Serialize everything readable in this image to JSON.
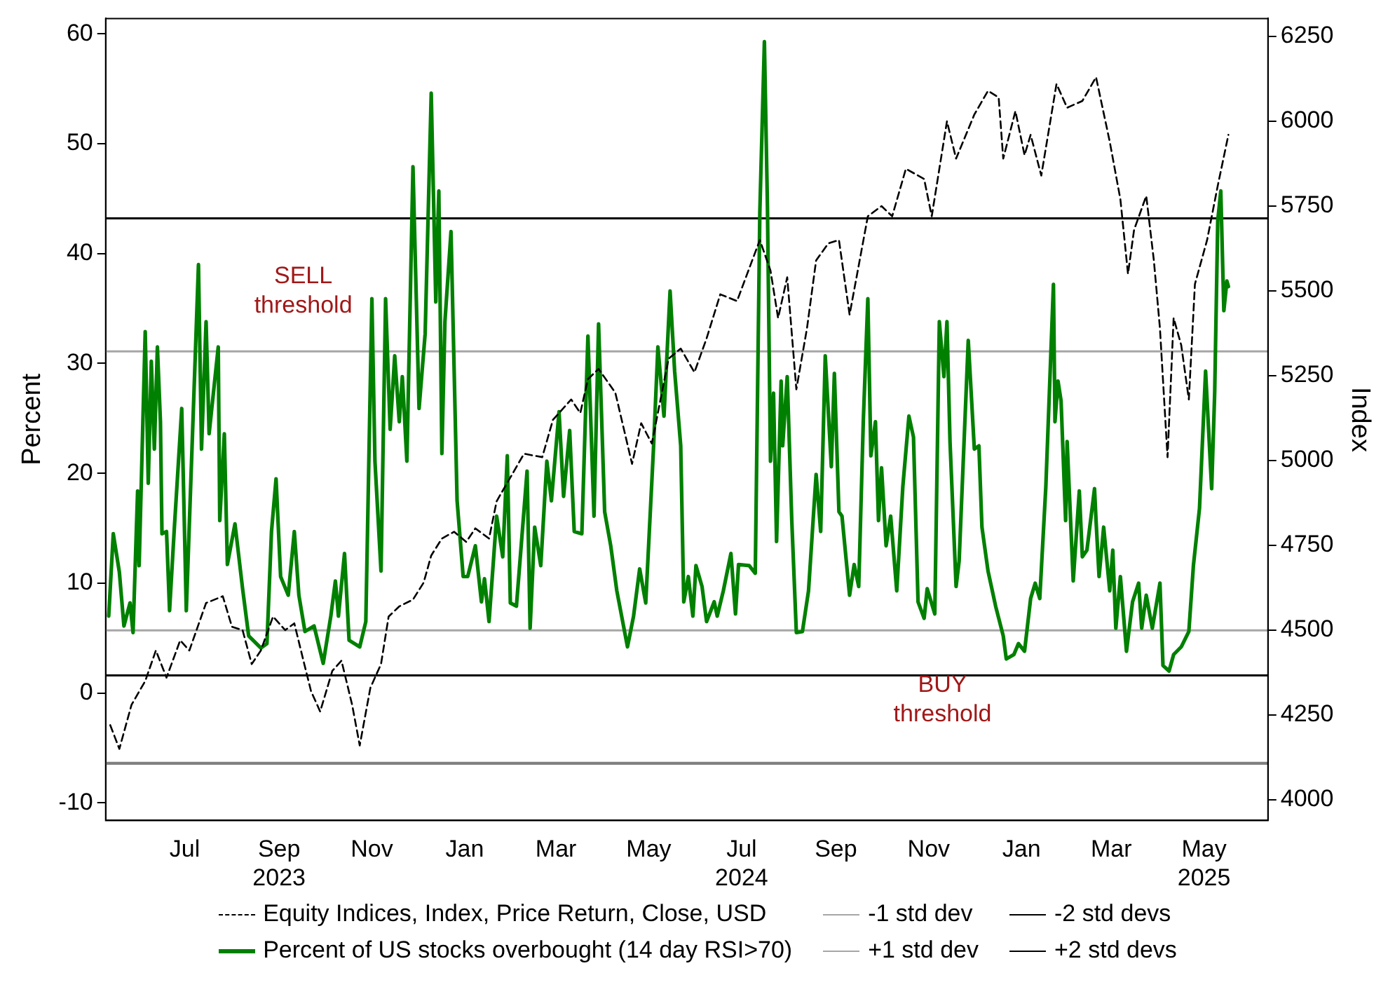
{
  "chart_data": {
    "type": "line",
    "xlim": [
      "2023-05-24",
      "2025-06-26"
    ],
    "xticks": [
      {
        "value": "2023-07-15",
        "label": "Jul"
      },
      {
        "value": "2023-09-15",
        "label": "Sep\n2023"
      },
      {
        "value": "2023-11-15",
        "label": "Nov"
      },
      {
        "value": "2024-01-15",
        "label": "Jan"
      },
      {
        "value": "2024-03-15",
        "label": "Mar"
      },
      {
        "value": "2024-05-15",
        "label": "May"
      },
      {
        "value": "2024-07-15",
        "label": "Jul\n2024"
      },
      {
        "value": "2024-09-15",
        "label": "Sep"
      },
      {
        "value": "2024-11-15",
        "label": "Nov"
      },
      {
        "value": "2025-01-15",
        "label": "Jan"
      },
      {
        "value": "2025-03-15",
        "label": "Mar"
      },
      {
        "value": "2025-05-15",
        "label": "May\n2025"
      }
    ],
    "ylim": [
      -11.6,
      61.4
    ],
    "yticks": [
      -10,
      0,
      10,
      20,
      30,
      40,
      50,
      60
    ],
    "ylabel": "Percent",
    "y2lim": [
      3939,
      6303
    ],
    "y2ticks": [
      4000,
      4250,
      4500,
      4750,
      5000,
      5250,
      5500,
      5750,
      6000,
      6250
    ],
    "y2label": "Index",
    "grid": false,
    "legend": "bottom",
    "marker": "none",
    "series": [
      {
        "name": "Equity Indices, Index, Price Return, Close, USD",
        "color": "#000000",
        "axis": "y2",
        "line_style": "dashed",
        "x": [
          "2023-05-27",
          "2023-06-02",
          "2023-06-10",
          "2023-06-19",
          "2023-06-26",
          "2023-07-03",
          "2023-07-12",
          "2023-07-18",
          "2023-07-29",
          "2023-08-09",
          "2023-08-15",
          "2023-08-22",
          "2023-08-28",
          "2023-09-03",
          "2023-09-11",
          "2023-09-19",
          "2023-09-25",
          "2023-10-01",
          "2023-10-06",
          "2023-10-12",
          "2023-10-20",
          "2023-10-26",
          "2023-11-02",
          "2023-11-07",
          "2023-11-14",
          "2023-11-21",
          "2023-11-26",
          "2023-12-03",
          "2023-12-12",
          "2023-12-19",
          "2023-12-24",
          "2023-12-31",
          "2024-01-08",
          "2024-01-16",
          "2024-01-22",
          "2024-01-31",
          "2024-02-05",
          "2024-02-14",
          "2024-02-23",
          "2024-03-06",
          "2024-03-13",
          "2024-03-25",
          "2024-03-31",
          "2024-04-05",
          "2024-04-12",
          "2024-04-23",
          "2024-05-04",
          "2024-05-10",
          "2024-05-17",
          "2024-05-28",
          "2024-06-05",
          "2024-06-14",
          "2024-06-22",
          "2024-07-01",
          "2024-07-12",
          "2024-07-27",
          "2024-08-03",
          "2024-08-08",
          "2024-08-14",
          "2024-08-20",
          "2024-08-27",
          "2024-09-02",
          "2024-09-10",
          "2024-09-17",
          "2024-09-24",
          "2024-10-06",
          "2024-10-15",
          "2024-10-22",
          "2024-10-31",
          "2024-11-12",
          "2024-11-17",
          "2024-11-27",
          "2024-12-03",
          "2024-12-15",
          "2024-12-24",
          "2024-12-31",
          "2025-01-03",
          "2025-01-11",
          "2025-01-17",
          "2025-01-21",
          "2025-01-28",
          "2025-02-07",
          "2025-02-14",
          "2025-02-24",
          "2025-03-05",
          "2025-03-14",
          "2025-03-21",
          "2025-03-26",
          "2025-03-30",
          "2025-04-07",
          "2025-04-12",
          "2025-04-16",
          "2025-04-21",
          "2025-04-25",
          "2025-04-30",
          "2025-05-05",
          "2025-05-09",
          "2025-05-17",
          "2025-05-24",
          "2025-05-31"
        ],
        "values": [
          4220,
          4150,
          4280,
          4350,
          4440,
          4360,
          4470,
          4440,
          4580,
          4600,
          4510,
          4500,
          4400,
          4440,
          4540,
          4500,
          4520,
          4410,
          4320,
          4260,
          4380,
          4410,
          4280,
          4160,
          4330,
          4400,
          4540,
          4570,
          4590,
          4640,
          4720,
          4770,
          4790,
          4760,
          4800,
          4770,
          4880,
          4950,
          5020,
          5010,
          5120,
          5180,
          5140,
          5240,
          5270,
          5200,
          4990,
          5110,
          5050,
          5300,
          5330,
          5260,
          5360,
          5490,
          5470,
          5650,
          5560,
          5420,
          5540,
          5210,
          5390,
          5590,
          5640,
          5650,
          5430,
          5720,
          5750,
          5720,
          5860,
          5830,
          5720,
          6000,
          5890,
          6020,
          6090,
          6070,
          5890,
          6030,
          5900,
          5960,
          5840,
          6110,
          6040,
          6060,
          6130,
          5940,
          5770,
          5550,
          5680,
          5780,
          5590,
          5390,
          5010,
          5420,
          5340,
          5180,
          5520,
          5650,
          5810,
          5960
        ]
      },
      {
        "name": "Percent of US stocks overbought (14 day RSI>70)",
        "color": "#008000",
        "line_style": "solid",
        "x": [
          "2023-05-26",
          "2023-05-29",
          "2023-06-02",
          "2023-06-05",
          "2023-06-09",
          "2023-06-11",
          "2023-06-14",
          "2023-06-15",
          "2023-06-19",
          "2023-06-21",
          "2023-06-23",
          "2023-06-25",
          "2023-06-27",
          "2023-06-29",
          "2023-06-30",
          "2023-07-03",
          "2023-07-05",
          "2023-07-08",
          "2023-07-13",
          "2023-07-16",
          "2023-07-24",
          "2023-07-26",
          "2023-07-29",
          "2023-07-31",
          "2023-08-06",
          "2023-08-07",
          "2023-08-10",
          "2023-08-12",
          "2023-08-17",
          "2023-08-22",
          "2023-08-26",
          "2023-09-03",
          "2023-09-07",
          "2023-09-10",
          "2023-09-13",
          "2023-09-16",
          "2023-09-21",
          "2023-09-25",
          "2023-09-28",
          "2023-10-02",
          "2023-10-08",
          "2023-10-14",
          "2023-10-19",
          "2023-10-22",
          "2023-10-24",
          "2023-10-28",
          "2023-10-31",
          "2023-11-07",
          "2023-11-11",
          "2023-11-15",
          "2023-11-17",
          "2023-11-21",
          "2023-11-24",
          "2023-11-27",
          "2023-11-30",
          "2023-12-03",
          "2023-12-05",
          "2023-12-08",
          "2023-12-12",
          "2023-12-16",
          "2023-12-20",
          "2023-12-24",
          "2023-12-27",
          "2023-12-29",
          "2023-12-31",
          "2024-01-02",
          "2024-01-06",
          "2024-01-10",
          "2024-01-14",
          "2024-01-17",
          "2024-01-22",
          "2024-01-26",
          "2024-01-28",
          "2024-01-31",
          "2024-02-05",
          "2024-02-09",
          "2024-02-12",
          "2024-02-14",
          "2024-02-18",
          "2024-02-25",
          "2024-02-27",
          "2024-03-01",
          "2024-03-05",
          "2024-03-09",
          "2024-03-12",
          "2024-03-17",
          "2024-03-20",
          "2024-03-24",
          "2024-03-27",
          "2024-04-01",
          "2024-04-05",
          "2024-04-09",
          "2024-04-12",
          "2024-04-16",
          "2024-04-20",
          "2024-04-24",
          "2024-05-01",
          "2024-05-05",
          "2024-05-09",
          "2024-05-13",
          "2024-05-18",
          "2024-05-21",
          "2024-05-25",
          "2024-05-29",
          "2024-06-01",
          "2024-06-05",
          "2024-06-07",
          "2024-06-10",
          "2024-06-13",
          "2024-06-15",
          "2024-06-19",
          "2024-06-22",
          "2024-06-27",
          "2024-06-29",
          "2024-07-03",
          "2024-07-08",
          "2024-07-11",
          "2024-07-13",
          "2024-07-20",
          "2024-07-24",
          "2024-07-27",
          "2024-07-30",
          "2024-08-01",
          "2024-08-03",
          "2024-08-05",
          "2024-08-07",
          "2024-08-10",
          "2024-08-11",
          "2024-08-14",
          "2024-08-17",
          "2024-08-20",
          "2024-08-24",
          "2024-08-28",
          "2024-09-02",
          "2024-09-05",
          "2024-09-08",
          "2024-09-12",
          "2024-09-14",
          "2024-09-17",
          "2024-09-19",
          "2024-09-24",
          "2024-09-27",
          "2024-09-30",
          "2024-10-03",
          "2024-10-06",
          "2024-10-08",
          "2024-10-11",
          "2024-10-13",
          "2024-10-15",
          "2024-10-18",
          "2024-10-21",
          "2024-10-25",
          "2024-10-29",
          "2024-11-02",
          "2024-11-05",
          "2024-11-08",
          "2024-11-12",
          "2024-11-14",
          "2024-11-19",
          "2024-11-22",
          "2024-11-25",
          "2024-11-27",
          "2024-11-29",
          "2024-12-03",
          "2024-12-05",
          "2024-12-11",
          "2024-12-15",
          "2024-12-18",
          "2024-12-20",
          "2024-12-24",
          "2024-12-29",
          "2025-01-03",
          "2025-01-05",
          "2025-01-10",
          "2025-01-13",
          "2025-01-17",
          "2025-01-21",
          "2025-01-24",
          "2025-01-27",
          "2025-01-31",
          "2025-02-05",
          "2025-02-06",
          "2025-02-08",
          "2025-02-10",
          "2025-02-13",
          "2025-02-14",
          "2025-02-18",
          "2025-02-22",
          "2025-02-24",
          "2025-02-27",
          "2025-03-04",
          "2025-03-05",
          "2025-03-07",
          "2025-03-10",
          "2025-03-14",
          "2025-03-16",
          "2025-03-18",
          "2025-03-21",
          "2025-03-25",
          "2025-03-29",
          "2025-04-02",
          "2025-04-04",
          "2025-04-07",
          "2025-04-11",
          "2025-04-16",
          "2025-04-18",
          "2025-04-22",
          "2025-04-25",
          "2025-04-30",
          "2025-05-05",
          "2025-05-08",
          "2025-05-12",
          "2025-05-16",
          "2025-05-20",
          "2025-05-22",
          "2025-05-24",
          "2025-05-26",
          "2025-05-28",
          "2025-05-30",
          "2025-05-31"
        ],
        "values": [
          7.0,
          14.5,
          11.0,
          6.1,
          8.2,
          5.5,
          18.4,
          11.6,
          32.9,
          19.1,
          30.2,
          22.2,
          31.5,
          24.7,
          14.5,
          14.7,
          7.5,
          14.7,
          25.9,
          7.5,
          39.0,
          22.2,
          33.8,
          23.6,
          31.5,
          15.7,
          23.6,
          11.7,
          15.4,
          9.5,
          5.2,
          4.1,
          4.5,
          14.7,
          19.5,
          10.6,
          8.9,
          14.7,
          8.9,
          5.6,
          6.1,
          2.7,
          7.0,
          10.2,
          7.0,
          12.7,
          4.8,
          4.2,
          6.5,
          35.9,
          21.1,
          11.1,
          35.9,
          24.0,
          30.7,
          24.7,
          28.8,
          21.1,
          47.9,
          25.9,
          32.7,
          54.6,
          35.6,
          45.7,
          21.8,
          33.8,
          42.0,
          17.5,
          10.6,
          10.6,
          13.4,
          8.3,
          10.4,
          6.5,
          16.1,
          12.4,
          21.6,
          8.2,
          7.9,
          20.2,
          5.9,
          15.1,
          11.6,
          21.1,
          17.5,
          25.6,
          17.9,
          23.9,
          14.7,
          14.5,
          32.5,
          16.1,
          33.6,
          16.5,
          13.4,
          9.3,
          4.2,
          7.0,
          11.3,
          8.2,
          22.0,
          31.5,
          25.2,
          36.6,
          29.3,
          22.5,
          8.3,
          10.6,
          7.0,
          11.6,
          9.7,
          6.5,
          8.3,
          7.0,
          9.3,
          12.7,
          7.2,
          11.7,
          11.6,
          10.9,
          43.8,
          59.3,
          44.3,
          21.1,
          27.3,
          13.8,
          28.4,
          22.5,
          28.8,
          15.7,
          5.5,
          5.6,
          9.3,
          19.9,
          14.7,
          30.7,
          20.6,
          29.1,
          16.5,
          16.1,
          8.9,
          11.7,
          9.7,
          24.7,
          35.9,
          21.6,
          24.7,
          15.7,
          20.5,
          13.4,
          16.1,
          9.3,
          18.8,
          25.2,
          23.3,
          8.3,
          6.8,
          9.5,
          7.2,
          33.8,
          28.8,
          33.8,
          22.9,
          9.7,
          12.0,
          32.1,
          22.2,
          22.5,
          15.1,
          11.1,
          7.9,
          5.2,
          3.1,
          3.5,
          4.5,
          3.8,
          8.6,
          10.0,
          8.6,
          18.8,
          37.2,
          24.7,
          28.4,
          26.6,
          15.7,
          22.9,
          10.2,
          18.4,
          12.4,
          13.0,
          18.6,
          15.7,
          10.6,
          15.1,
          9.3,
          13.0,
          5.9,
          10.6,
          3.8,
          8.3,
          10.0,
          5.9,
          8.9,
          5.9,
          10.0,
          2.5,
          2.0,
          3.5,
          4.2,
          5.6,
          11.6,
          16.8,
          29.3,
          18.6,
          27.4,
          43.0,
          45.7,
          34.8,
          37.5,
          37.0
        ]
      }
    ],
    "ref_lines": [
      {
        "axis": "y",
        "value": 5.7,
        "label": "-1 std dev",
        "color": "#a6a6a6"
      },
      {
        "axis": "y",
        "value": 31.1,
        "label": "+1 std dev",
        "color": "#a6a6a6"
      },
      {
        "axis": "y",
        "value": 1.6,
        "label": "-2 std devs",
        "color": "#000000"
      },
      {
        "axis": "y",
        "value": 43.2,
        "label": "+2 std devs",
        "color": "#000000"
      },
      {
        "axis": "y",
        "value": -6.4,
        "color": "#808080"
      }
    ],
    "annotations": [
      "SELL threshold",
      "BUY threshold"
    ]
  }
}
